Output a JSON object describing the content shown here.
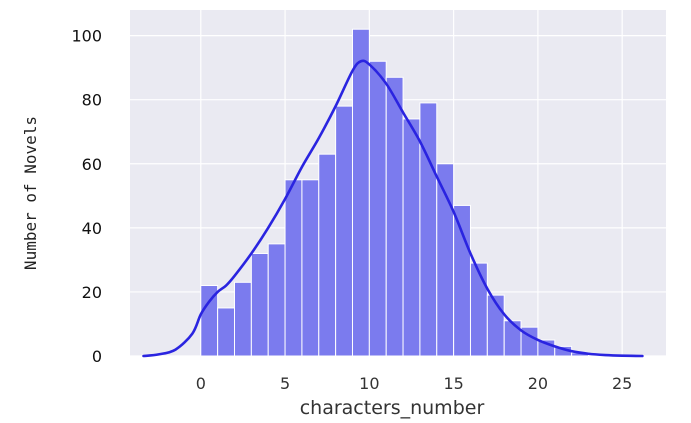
{
  "chart_data": {
    "type": "bar",
    "subtype": "histogram_with_kde",
    "xlabel": "characters_number",
    "ylabel": "Number of Novels",
    "xlim": [
      -4.2,
      27.6
    ],
    "ylim": [
      0,
      108
    ],
    "xticks": [
      0,
      5,
      10,
      15,
      20,
      25
    ],
    "yticks": [
      0,
      20,
      40,
      60,
      80,
      100
    ],
    "grid": true,
    "bin_width": 1,
    "bins": [
      {
        "x0": 0,
        "x1": 1,
        "value": 22
      },
      {
        "x0": 1,
        "x1": 2,
        "value": 15
      },
      {
        "x0": 2,
        "x1": 3,
        "value": 23
      },
      {
        "x0": 3,
        "x1": 4,
        "value": 32
      },
      {
        "x0": 4,
        "x1": 5,
        "value": 35
      },
      {
        "x0": 5,
        "x1": 6,
        "value": 55
      },
      {
        "x0": 6,
        "x1": 7,
        "value": 55
      },
      {
        "x0": 7,
        "x1": 8,
        "value": 63
      },
      {
        "x0": 8,
        "x1": 9,
        "value": 78
      },
      {
        "x0": 9,
        "x1": 10,
        "value": 102
      },
      {
        "x0": 10,
        "x1": 11,
        "value": 92
      },
      {
        "x0": 11,
        "x1": 12,
        "value": 87
      },
      {
        "x0": 12,
        "x1": 13,
        "value": 74
      },
      {
        "x0": 13,
        "x1": 14,
        "value": 79
      },
      {
        "x0": 14,
        "x1": 15,
        "value": 60
      },
      {
        "x0": 15,
        "x1": 16,
        "value": 47
      },
      {
        "x0": 16,
        "x1": 17,
        "value": 29
      },
      {
        "x0": 17,
        "x1": 18,
        "value": 19
      },
      {
        "x0": 18,
        "x1": 19,
        "value": 11
      },
      {
        "x0": 19,
        "x1": 20,
        "value": 9
      },
      {
        "x0": 20,
        "x1": 21,
        "value": 5
      },
      {
        "x0": 21,
        "x1": 22,
        "value": 3
      },
      {
        "x0": 22,
        "x1": 23,
        "value": 1
      }
    ],
    "kde": {
      "x": [
        -3.4,
        -2.5,
        -1.5,
        -0.5,
        0,
        0.5,
        1,
        1.5,
        2,
        3,
        4,
        5,
        6,
        7,
        8,
        9,
        9.5,
        10,
        11,
        12,
        13,
        14,
        15,
        16,
        17,
        18,
        19,
        20,
        21,
        22,
        23,
        24,
        25,
        26.2
      ],
      "y": [
        0,
        0.5,
        2,
        7,
        13,
        17,
        20,
        22,
        25,
        32,
        40,
        49,
        59,
        68,
        78,
        89,
        92,
        91,
        85,
        76,
        67,
        56,
        45,
        32,
        21,
        13,
        8,
        5,
        3,
        1.5,
        0.7,
        0.3,
        0.1,
        0
      ]
    },
    "colors": {
      "bars": "#7b7bee",
      "bar_edge": "#ffffff",
      "kde": "#2a24e0",
      "plot_background": "#eaeaf2",
      "grid": "#ffffff"
    }
  }
}
